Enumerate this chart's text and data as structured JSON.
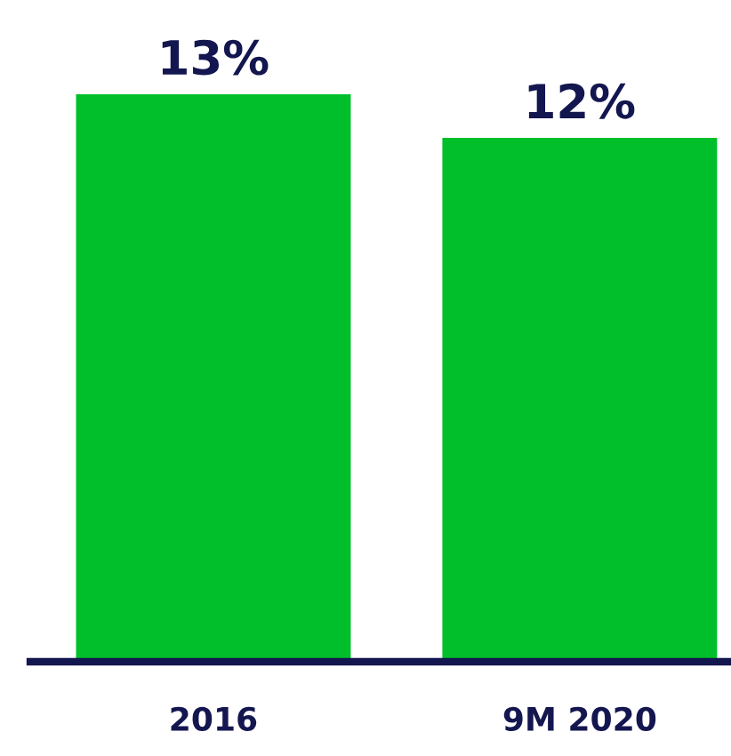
{
  "chart_data": {
    "type": "bar",
    "categories": [
      "2016",
      "9M 2020"
    ],
    "values": [
      13,
      12
    ],
    "value_labels": [
      "13%",
      "12%"
    ],
    "color": "#00bf2a",
    "grid": false,
    "legend": false,
    "tick_labels": "x"
  }
}
